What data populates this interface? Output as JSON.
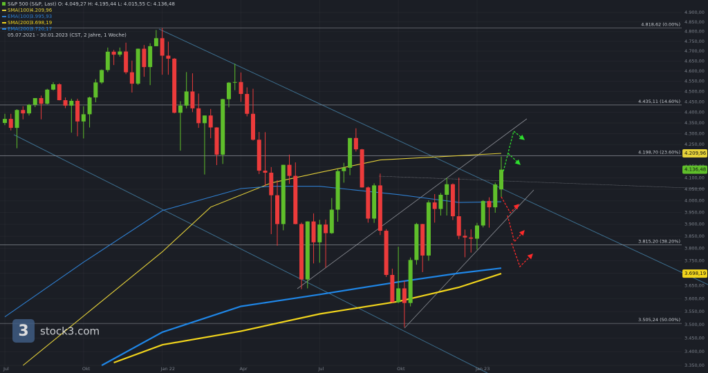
{
  "chart_data": {
    "type": "candlestick",
    "header": "S&P 500 (S&P, Last)  O: 4.049,27  H: 4.195,44  L: 4.015,55  C: 4.136,48",
    "range_note": "05.07.2021 - 30.01.2023   (CST, 2 Jahre, 1 Woche)",
    "watermark": "stock3.com",
    "categories": [
      "Jul",
      null,
      null,
      null,
      null,
      null,
      null,
      null,
      null,
      null,
      null,
      null,
      null,
      "Okt",
      null,
      null,
      null,
      null,
      null,
      null,
      null,
      null,
      null,
      null,
      null,
      null,
      "Jan 22",
      null,
      null,
      null,
      null,
      null,
      null,
      null,
      null,
      null,
      null,
      null,
      null,
      "Apr",
      null,
      null,
      null,
      null,
      null,
      null,
      null,
      null,
      null,
      null,
      null,
      null,
      "Jul",
      null,
      null,
      null,
      null,
      null,
      null,
      null,
      null,
      null,
      null,
      null,
      null,
      "Okt",
      null,
      null,
      null,
      null,
      null,
      null,
      null,
      null,
      null,
      null,
      null,
      null,
      "Jan 23",
      null,
      null,
      null,
      null
    ],
    "open": [
      4350,
      4369,
      4327,
      4411,
      4395,
      4436,
      4468,
      4441,
      4509,
      4535,
      4458,
      4432,
      4455,
      4357,
      4391,
      4471,
      4544,
      4605,
      4697,
      4682,
      4698,
      4594,
      4538,
      4712,
      4620,
      4725,
      4766,
      4677,
      4662,
      4398,
      4432,
      4500,
      4419,
      4349,
      4385,
      4329,
      4204,
      4463,
      4543,
      4546,
      4488,
      4393,
      4272,
      4132,
      4123,
      4024,
      3901,
      4158,
      4109,
      3901,
      3675,
      3912,
      3825,
      3899,
      3863,
      3962,
      4130,
      4145,
      4280,
      4228,
      4058,
      3924,
      4067,
      3873,
      3693,
      3586,
      3640,
      3583,
      3753,
      3901,
      3771,
      3993,
      3965,
      4026,
      4072,
      3934,
      3852,
      3845,
      3840,
      3895,
      3999,
      3972,
      4049.27
    ],
    "high": [
      4393,
      4393,
      4415,
      4429,
      4440,
      4468,
      4480,
      4513,
      4545,
      4540,
      4471,
      4465,
      4465,
      4429,
      4475,
      4560,
      4608,
      4718,
      4706,
      4718,
      4743,
      4652,
      4713,
      4731,
      4740,
      4808,
      4818,
      4748,
      4665,
      4453,
      4595,
      4589,
      4490,
      4385,
      4416,
      4330,
      4465,
      4546,
      4637,
      4593,
      4520,
      4513,
      4308,
      4307,
      4148,
      4090,
      4158,
      4204,
      4169,
      3907,
      3913,
      3946,
      3919,
      3920,
      4012,
      4140,
      4167,
      4280,
      4325,
      4230,
      4062,
      4076,
      4119,
      3880,
      3718,
      3807,
      3669,
      3763,
      3906,
      3902,
      4002,
      4029,
      4034,
      4100,
      4076,
      4101,
      3878,
      3879,
      3906,
      4003,
      4015,
      4079,
      4195.44
    ],
    "low": [
      4340,
      4315,
      4233,
      4367,
      4385,
      4425,
      4367,
      4438,
      4505,
      4457,
      4420,
      4305,
      4288,
      4278,
      4329,
      4448,
      4537,
      4595,
      4630,
      4672,
      4585,
      4495,
      4532,
      4572,
      4531,
      4725,
      4582,
      4582,
      4395,
      4222,
      4419,
      4401,
      4327,
      4115,
      4279,
      4157,
      4162,
      4424,
      4506,
      4450,
      4381,
      4268,
      4117,
      4063,
      3859,
      3811,
      3875,
      4074,
      3900,
      3637,
      3640,
      3739,
      3742,
      3722,
      3860,
      3911,
      4079,
      4112,
      4218,
      4057,
      3907,
      3906,
      3855,
      3685,
      3584,
      3582,
      3491,
      3570,
      3734,
      3704,
      3750,
      3907,
      3937,
      3937,
      3918,
      3838,
      3764,
      3783,
      3795,
      3887,
      3886,
      3949,
      4015.55
    ],
    "close": [
      4369,
      4327,
      4411,
      4395,
      4436,
      4468,
      4441,
      4509,
      4535,
      4458,
      4432,
      4455,
      4357,
      4391,
      4471,
      4544,
      4605,
      4697,
      4682,
      4698,
      4594,
      4538,
      4712,
      4620,
      4725,
      4766,
      4677,
      4662,
      4398,
      4432,
      4500,
      4419,
      4349,
      4385,
      4329,
      4204,
      4463,
      4543,
      4546,
      4488,
      4393,
      4272,
      4132,
      4123,
      4024,
      3901,
      4158,
      4109,
      3901,
      3675,
      3912,
      3825,
      3899,
      3863,
      3962,
      4130,
      4145,
      4280,
      4228,
      4058,
      3924,
      4067,
      3873,
      3693,
      3586,
      3640,
      3583,
      3753,
      3901,
      3771,
      3993,
      3965,
      4026,
      4072,
      3934,
      3852,
      3845,
      3840,
      3895,
      3999,
      3972,
      4071,
      4136.48
    ],
    "close_label": "4.136,48",
    "up_color": "#5fbf2b",
    "down_color": "#ec3b3b",
    "ylim": [
      3350,
      4900
    ],
    "log_scale": true,
    "grid": true,
    "yticks": [
      {
        "value": 3350,
        "label": "3.350,00"
      },
      {
        "value": 3400,
        "label": "3.400,00"
      },
      {
        "value": 3450,
        "label": "3.450,00"
      },
      {
        "value": 3500,
        "label": "3.500,00"
      },
      {
        "value": 3550,
        "label": "3.550,00"
      },
      {
        "value": 3600,
        "label": "3.600,00"
      },
      {
        "value": 3650,
        "label": "3.650,00"
      },
      {
        "value": 3700,
        "label": "3.700,00"
      },
      {
        "value": 3750,
        "label": "3.750,00"
      },
      {
        "value": 3800,
        "label": "3.800,00"
      },
      {
        "value": 3850,
        "label": "3.850,00"
      },
      {
        "value": 3900,
        "label": "3.900,00"
      },
      {
        "value": 3950,
        "label": "3.950,00"
      },
      {
        "value": 4000,
        "label": "4.000,00"
      },
      {
        "value": 4050,
        "label": "4.050,00"
      },
      {
        "value": 4100,
        "label": "4.100,00"
      },
      {
        "value": 4150,
        "label": "4.150,00"
      },
      {
        "value": 4200,
        "label": "4.200,00"
      },
      {
        "value": 4250,
        "label": "4.250,00"
      },
      {
        "value": 4300,
        "label": "4.300,00"
      },
      {
        "value": 4350,
        "label": "4.350,00"
      },
      {
        "value": 4400,
        "label": "4.400,00"
      },
      {
        "value": 4450,
        "label": "4.450,00"
      },
      {
        "value": 4500,
        "label": "4.500,00"
      },
      {
        "value": 4550,
        "label": "4.550,00"
      },
      {
        "value": 4600,
        "label": "4.600,00"
      },
      {
        "value": 4650,
        "label": "4.650,00"
      },
      {
        "value": 4700,
        "label": "4.700,00"
      },
      {
        "value": 4750,
        "label": "4.750,00"
      },
      {
        "value": 4800,
        "label": "4.800,00"
      },
      {
        "value": 4850,
        "label": "4.850,00"
      },
      {
        "value": 4900,
        "label": "4.900,00"
      }
    ],
    "levels": [
      {
        "value": 4818.62,
        "label": "4.818,62 (0.00%)"
      },
      {
        "value": 4435.11,
        "label": "4.435,11 (14.60%)"
      },
      {
        "value": 4198.7,
        "label": "4.198,70 (23.60%)"
      },
      {
        "value": 3815.2,
        "label": "3.815,20 (38.20%)"
      },
      {
        "value": 3505.24,
        "label": "3.505,24 (50.00%)"
      }
    ],
    "series": [
      {
        "name": "SMA(100)",
        "color": "#e6d23a",
        "width": 1,
        "price_box": true,
        "x": [
          3,
          26,
          34,
          44,
          52,
          62,
          82
        ],
        "values": [
          3350,
          3786,
          3973,
          4078,
          4124,
          4180,
          4209.96
        ],
        "value_label": "4.209,96"
      },
      {
        "name": "EMA(100)",
        "color": "#2f7fd0",
        "width": 1,
        "price_box": false,
        "x": [
          0,
          13,
          26,
          39,
          44,
          52,
          65,
          75,
          82
        ],
        "values": [
          3530,
          3744,
          3958,
          4053,
          4063,
          4063,
          4027,
          3993,
          3995.93
        ],
        "value_label": "3.995,93"
      },
      {
        "name": "SMA(200)",
        "color": "#f2d51c",
        "width": 2,
        "price_box": true,
        "x": [
          18,
          26,
          39,
          52,
          65,
          75,
          82
        ],
        "values": [
          3360,
          3425,
          3476,
          3541,
          3589,
          3644,
          3698.19
        ],
        "value_label": "3.698,19"
      },
      {
        "name": "EMA(200)",
        "color": "#1f87e8",
        "width": 2,
        "price_box": false,
        "x": [
          16,
          26,
          39,
          52,
          65,
          75,
          82
        ],
        "values": [
          3350,
          3472,
          3570,
          3616,
          3665,
          3700,
          3720.17
        ],
        "value_label": "3.720,17"
      }
    ]
  }
}
